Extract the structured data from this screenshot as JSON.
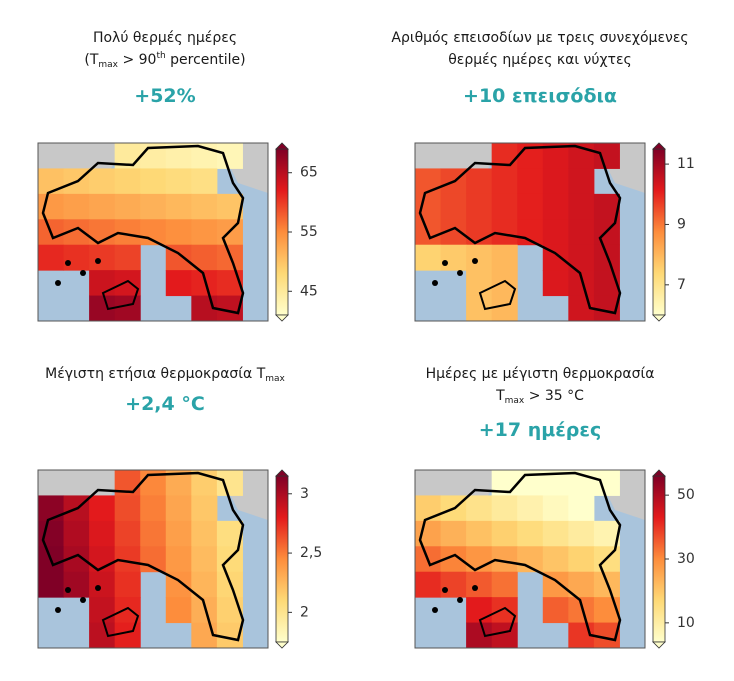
{
  "colormap": [
    "#ffffcc",
    "#fed976",
    "#fd8d3c",
    "#e31a1c",
    "#800026"
  ],
  "panels": [
    {
      "title_lines": [
        [
          {
            "text": "Πολύ θερμές ημέρες"
          }
        ],
        [
          {
            "text": "(T"
          },
          {
            "text": "max",
            "style": "sub"
          },
          {
            "text": " > 90"
          },
          {
            "text": "th",
            "style": "sup"
          },
          {
            "text": " percentile)"
          }
        ]
      ],
      "change": "+52%",
      "colorbar": {
        "lim": [
          41,
          69
        ],
        "ticks": [
          45,
          55,
          65
        ]
      }
    },
    {
      "title_lines": [
        [
          {
            "text": "Αριθμός επεισοδίων με τρεις συνεχόμενες"
          }
        ],
        [
          {
            "text": "θερμές ημέρες και νύχτες"
          }
        ]
      ],
      "change": "+10 επεισόδια",
      "colorbar": {
        "lim": [
          6,
          11.5
        ],
        "ticks": [
          7,
          9,
          11
        ]
      }
    },
    {
      "title_lines": [
        [
          {
            "text": "Μέγιστη ετήσια θερμοκρασία T"
          },
          {
            "text": "max",
            "style": "sub"
          }
        ]
      ],
      "change": "+2,4 °C",
      "colorbar": {
        "lim": [
          1.75,
          3.15
        ],
        "ticks": [
          2,
          {
            "value": 2.5,
            "label": "2,5"
          },
          3
        ]
      }
    },
    {
      "title_lines": [
        [
          {
            "text": "Ημέρες με μέγιστη θερμοκρασία"
          }
        ],
        [
          {
            "text": "T"
          },
          {
            "text": "max",
            "style": "sub"
          },
          {
            "text": " > 35 °C"
          }
        ]
      ],
      "change": "+17 ημέρες",
      "colorbar": {
        "lim": [
          4,
          56
        ],
        "ticks": [
          10,
          30,
          50
        ]
      }
    }
  ]
}
